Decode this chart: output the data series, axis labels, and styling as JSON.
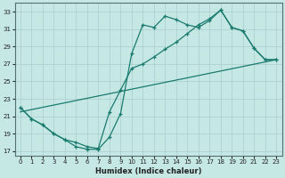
{
  "xlabel": "Humidex (Indice chaleur)",
  "xlim": [
    -0.5,
    23.5
  ],
  "ylim": [
    16.5,
    34
  ],
  "xticks": [
    0,
    1,
    2,
    3,
    4,
    5,
    6,
    7,
    8,
    9,
    10,
    11,
    12,
    13,
    14,
    15,
    16,
    17,
    18,
    19,
    20,
    21,
    22,
    23
  ],
  "yticks": [
    17,
    19,
    21,
    23,
    25,
    27,
    29,
    31,
    33
  ],
  "bg_color": "#c5e8e5",
  "grid_color": "#a8ceca",
  "line_color": "#1a7a6e",
  "line1_x": [
    0,
    1,
    2,
    3,
    4,
    5,
    6,
    7,
    8,
    9,
    10,
    11,
    12,
    13,
    14,
    15,
    16,
    17,
    18,
    19,
    20,
    21,
    22,
    23
  ],
  "line1_y": [
    22.0,
    20.7,
    20.0,
    19.0,
    18.3,
    17.5,
    17.2,
    17.2,
    18.6,
    21.3,
    28.2,
    31.5,
    31.2,
    32.5,
    32.1,
    31.5,
    31.2,
    32.0,
    33.2,
    31.2,
    30.8,
    28.8,
    27.5,
    27.5
  ],
  "line2_x": [
    0,
    1,
    2,
    3,
    4,
    5,
    6,
    7,
    8,
    9,
    10,
    11,
    12,
    13,
    14,
    15,
    16,
    17,
    18,
    19,
    20,
    21,
    22,
    23
  ],
  "line2_y": [
    22.0,
    20.7,
    20.0,
    19.0,
    18.3,
    18.0,
    17.5,
    17.3,
    21.5,
    24.0,
    26.5,
    27.0,
    27.8,
    28.7,
    29.5,
    30.5,
    31.5,
    32.2,
    33.2,
    31.2,
    30.8,
    28.8,
    27.5,
    27.5
  ],
  "line3_x": [
    0,
    23
  ],
  "line3_y": [
    21.5,
    27.5
  ]
}
